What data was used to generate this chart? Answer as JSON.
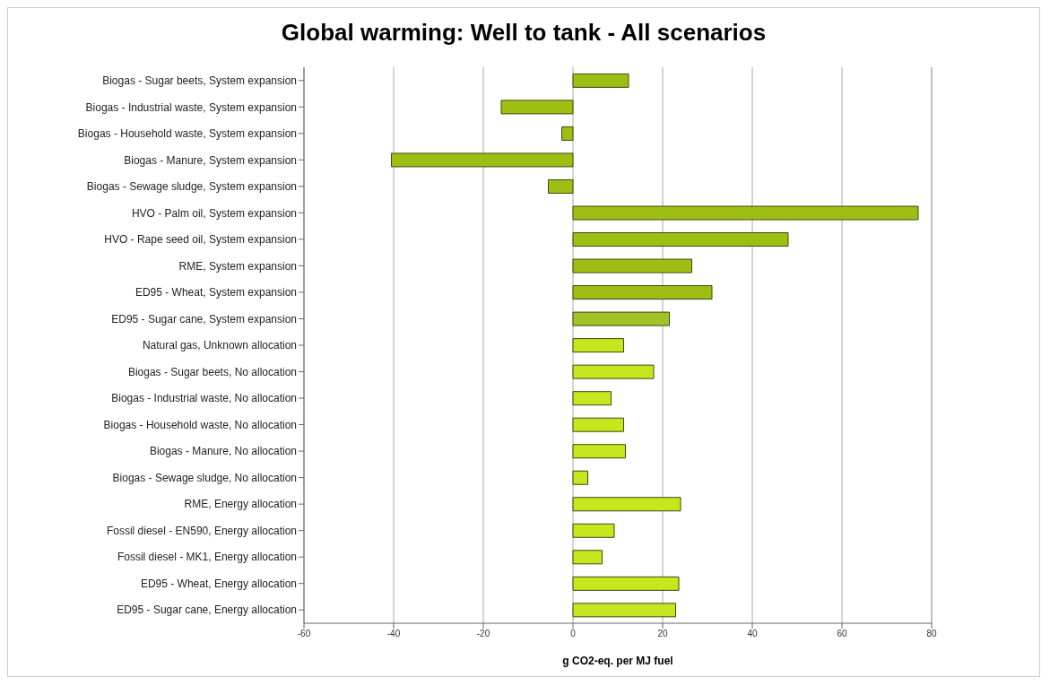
{
  "chart_data": {
    "type": "bar",
    "orientation": "horizontal",
    "title": "Global warming: Well to tank - All scenarios",
    "xlabel": "g CO2-eq. per MJ fuel",
    "categories": [
      "Biogas - Sugar beets, System expansion",
      "Biogas - Industrial waste, System expansion",
      "Biogas - Household waste, System expansion",
      "Biogas - Manure, System expansion",
      "Biogas - Sewage sludge, System expansion",
      "HVO - Palm oil, System expansion",
      "HVO - Rape seed oil, System expansion",
      "RME, System expansion",
      "ED95 - Wheat, System expansion",
      "ED95 - Sugar cane, System expansion",
      "Natural gas, Unknown allocation",
      "Biogas - Sugar beets, No allocation",
      "Biogas - Industrial waste, No allocation",
      "Biogas - Household waste, No allocation",
      "Biogas - Manure, No allocation",
      "Biogas - Sewage sludge, No allocation",
      "RME, Energy allocation",
      "Fossil diesel - EN590, Energy allocation",
      "Fossil diesel - MK1, Energy allocation",
      "ED95 - Wheat, Energy allocation",
      "ED95 - Sugar cane, Energy allocation"
    ],
    "values": [
      12.4,
      -16,
      -2.5,
      -40.5,
      -5.5,
      77,
      48,
      26.5,
      31,
      21.5,
      11.3,
      18,
      8.5,
      11.3,
      11.7,
      3.3,
      24,
      9.2,
      6.5,
      23.6,
      22.9
    ],
    "colors": [
      "#9dbf14",
      "#9dbf14",
      "#9dbf14",
      "#9dbf14",
      "#9dbf14",
      "#9dbf14",
      "#9dbf14",
      "#9dbf14",
      "#9dbf14",
      "#a3c226",
      "#c6e61e",
      "#c6e61e",
      "#c6e61e",
      "#c6e61e",
      "#c6e61e",
      "#c6e61e",
      "#c6e61e",
      "#c6e61e",
      "#c6e61e",
      "#c6e61e",
      "#c6e61e"
    ],
    "xlim": [
      -60,
      80
    ],
    "xticks": [
      -60,
      -40,
      -20,
      0,
      20,
      40,
      60,
      80
    ],
    "grid": "x"
  }
}
